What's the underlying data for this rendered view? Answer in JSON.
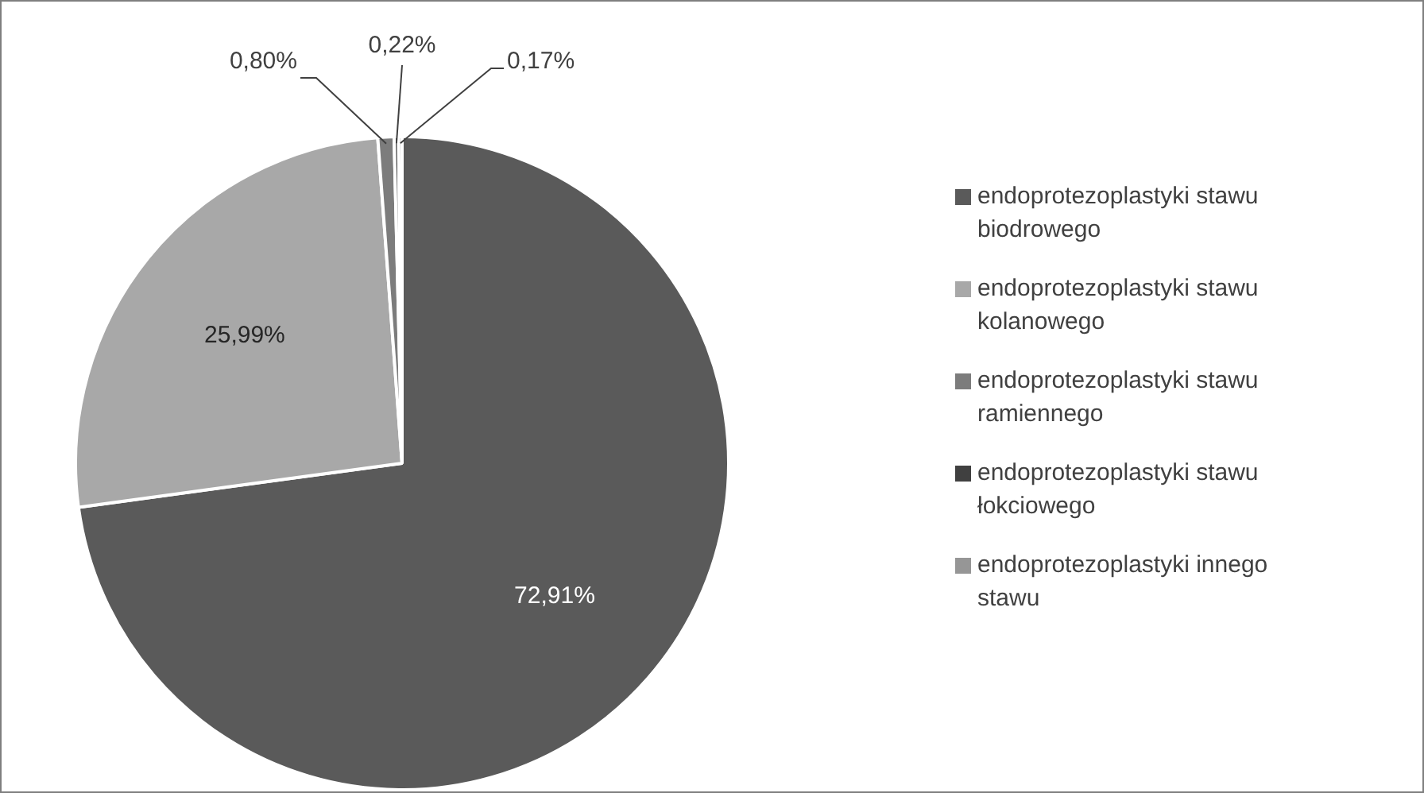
{
  "chart_data": {
    "type": "pie",
    "categories": [
      "endoprotezoplastyki stawu biodrowego",
      "endoprotezoplastyki stawu kolanowego",
      "endoprotezoplastyki stawu ramiennego",
      "endoprotezoplastyki stawu łokciowego",
      "endoprotezoplastyki innego stawu"
    ],
    "values": [
      72.91,
      25.99,
      0.8,
      0.22,
      0.17
    ],
    "value_labels": [
      "72,91%",
      "25,99%",
      "0,80%",
      "0,22%",
      "0,17%"
    ],
    "colors": [
      "#5a5a5a",
      "#a8a8a8",
      "#7c7c7c",
      "#404040",
      "#969696"
    ],
    "legend": "right"
  }
}
